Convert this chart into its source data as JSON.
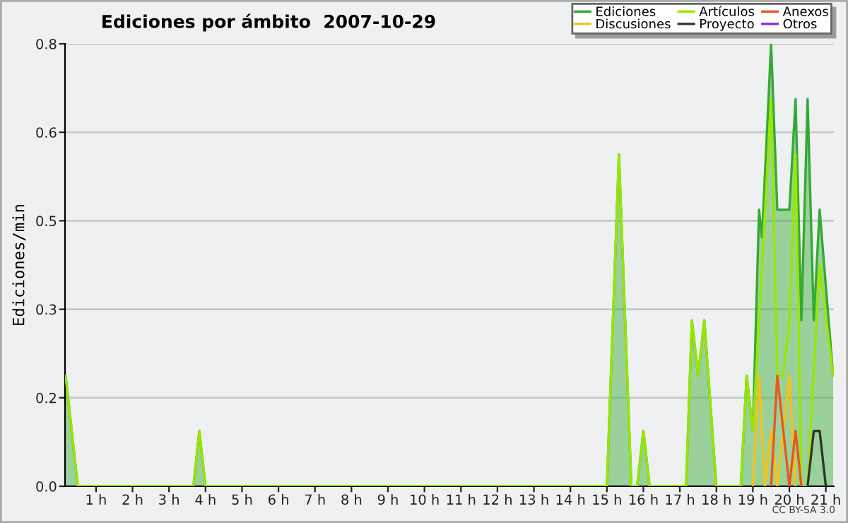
{
  "chart_data": {
    "type": "line",
    "title": "Ediciones por ámbito  2007-10-29",
    "ylabel": "Ediciones/min",
    "xlim": [
      0.15,
      21.22
    ],
    "ylim": [
      0,
      0.8
    ],
    "xticks": [
      {
        "value": 1,
        "label": "1 h"
      },
      {
        "value": 2,
        "label": "2 h"
      },
      {
        "value": 3,
        "label": "3 h"
      },
      {
        "value": 4,
        "label": "4 h"
      },
      {
        "value": 5,
        "label": "5 h"
      },
      {
        "value": 6,
        "label": "6 h"
      },
      {
        "value": 7,
        "label": "7 h"
      },
      {
        "value": 8,
        "label": "8 h"
      },
      {
        "value": 9,
        "label": "9 h"
      },
      {
        "value": 10,
        "label": "10 h"
      },
      {
        "value": 11,
        "label": "11 h"
      },
      {
        "value": 12,
        "label": "12 h"
      },
      {
        "value": 13,
        "label": "13 h"
      },
      {
        "value": 14,
        "label": "14 h"
      },
      {
        "value": 15,
        "label": "15 h"
      },
      {
        "value": 16,
        "label": "16 h"
      },
      {
        "value": 17,
        "label": "17 h"
      },
      {
        "value": 18,
        "label": "18 h"
      },
      {
        "value": 19,
        "label": "19 h"
      },
      {
        "value": 20,
        "label": "20 h"
      },
      {
        "value": 21,
        "label": "21 h"
      }
    ],
    "yticks": [
      {
        "value": 0,
        "label": "0.0"
      },
      {
        "value": 0.16,
        "label": "0.2"
      },
      {
        "value": 0.32,
        "label": "0.3"
      },
      {
        "value": 0.48,
        "label": "0.5"
      },
      {
        "value": 0.64,
        "label": "0.6"
      },
      {
        "value": 0.8,
        "label": "0.8"
      }
    ],
    "grid": "y",
    "legend": "top right",
    "marker": "none",
    "line_style": "solid",
    "annotations": [
      "CC BY-SA 3.0"
    ],
    "series": [
      {
        "name": "Ediciones",
        "type": "area",
        "color": "#33aa33",
        "x": [
          0.167,
          0.5,
          3.67,
          3.83,
          4.0,
          15.0,
          15.33,
          15.67,
          15.83,
          16.0,
          16.17,
          17.17,
          17.33,
          17.5,
          17.67,
          18.0,
          18.67,
          18.83,
          19.0,
          19.17,
          19.25,
          19.5,
          19.67,
          20.0,
          20.17,
          20.33,
          20.5,
          20.67,
          20.83,
          21.2
        ],
        "values": [
          0.2,
          0,
          0,
          0.1,
          0,
          0,
          0.6,
          0,
          0,
          0.1,
          0,
          0,
          0.3,
          0.2,
          0.3,
          0,
          0,
          0.2,
          0.1,
          0.5,
          0.45,
          0.8,
          0.5,
          0.5,
          0.7,
          0.3,
          0.7,
          0.3,
          0.5,
          0.2
        ]
      },
      {
        "name": "Discusiones",
        "color": "#f2c21a",
        "x": [
          19.0,
          19.17,
          19.33,
          19.5,
          19.67,
          19.83,
          20.0,
          20.17
        ],
        "values": [
          0,
          0.2,
          0,
          0.1,
          0,
          0.1,
          0.2,
          0
        ]
      },
      {
        "name": "Artículos",
        "color": "#99e600",
        "x": [
          0.167,
          0.5,
          3.67,
          3.83,
          4.0,
          15.0,
          15.33,
          15.67,
          15.83,
          16.0,
          16.17,
          17.17,
          17.33,
          17.5,
          17.67,
          18.0,
          18.67,
          18.83,
          19.0,
          19.17,
          19.5,
          19.67,
          19.83,
          20.0,
          20.17,
          20.33,
          20.5,
          20.83,
          21.2
        ],
        "values": [
          0.2,
          0,
          0,
          0.1,
          0,
          0,
          0.6,
          0,
          0,
          0.1,
          0,
          0,
          0.3,
          0.2,
          0.3,
          0,
          0,
          0.2,
          0.1,
          0.3,
          0.7,
          0.2,
          0.2,
          0.3,
          0.6,
          0,
          0,
          0.4,
          0.2
        ]
      },
      {
        "name": "Proyecto",
        "color": "#333333",
        "x": [
          20.5,
          20.67,
          20.83,
          21.0
        ],
        "values": [
          0,
          0.1,
          0.1,
          0
        ]
      },
      {
        "name": "Anexos",
        "color": "#e8571e",
        "x": [
          19.5,
          19.67,
          20.0,
          20.17,
          20.33
        ],
        "values": [
          0,
          0.2,
          0,
          0.1,
          0
        ]
      },
      {
        "name": "Otros",
        "color": "#8a2be2"
      }
    ]
  }
}
